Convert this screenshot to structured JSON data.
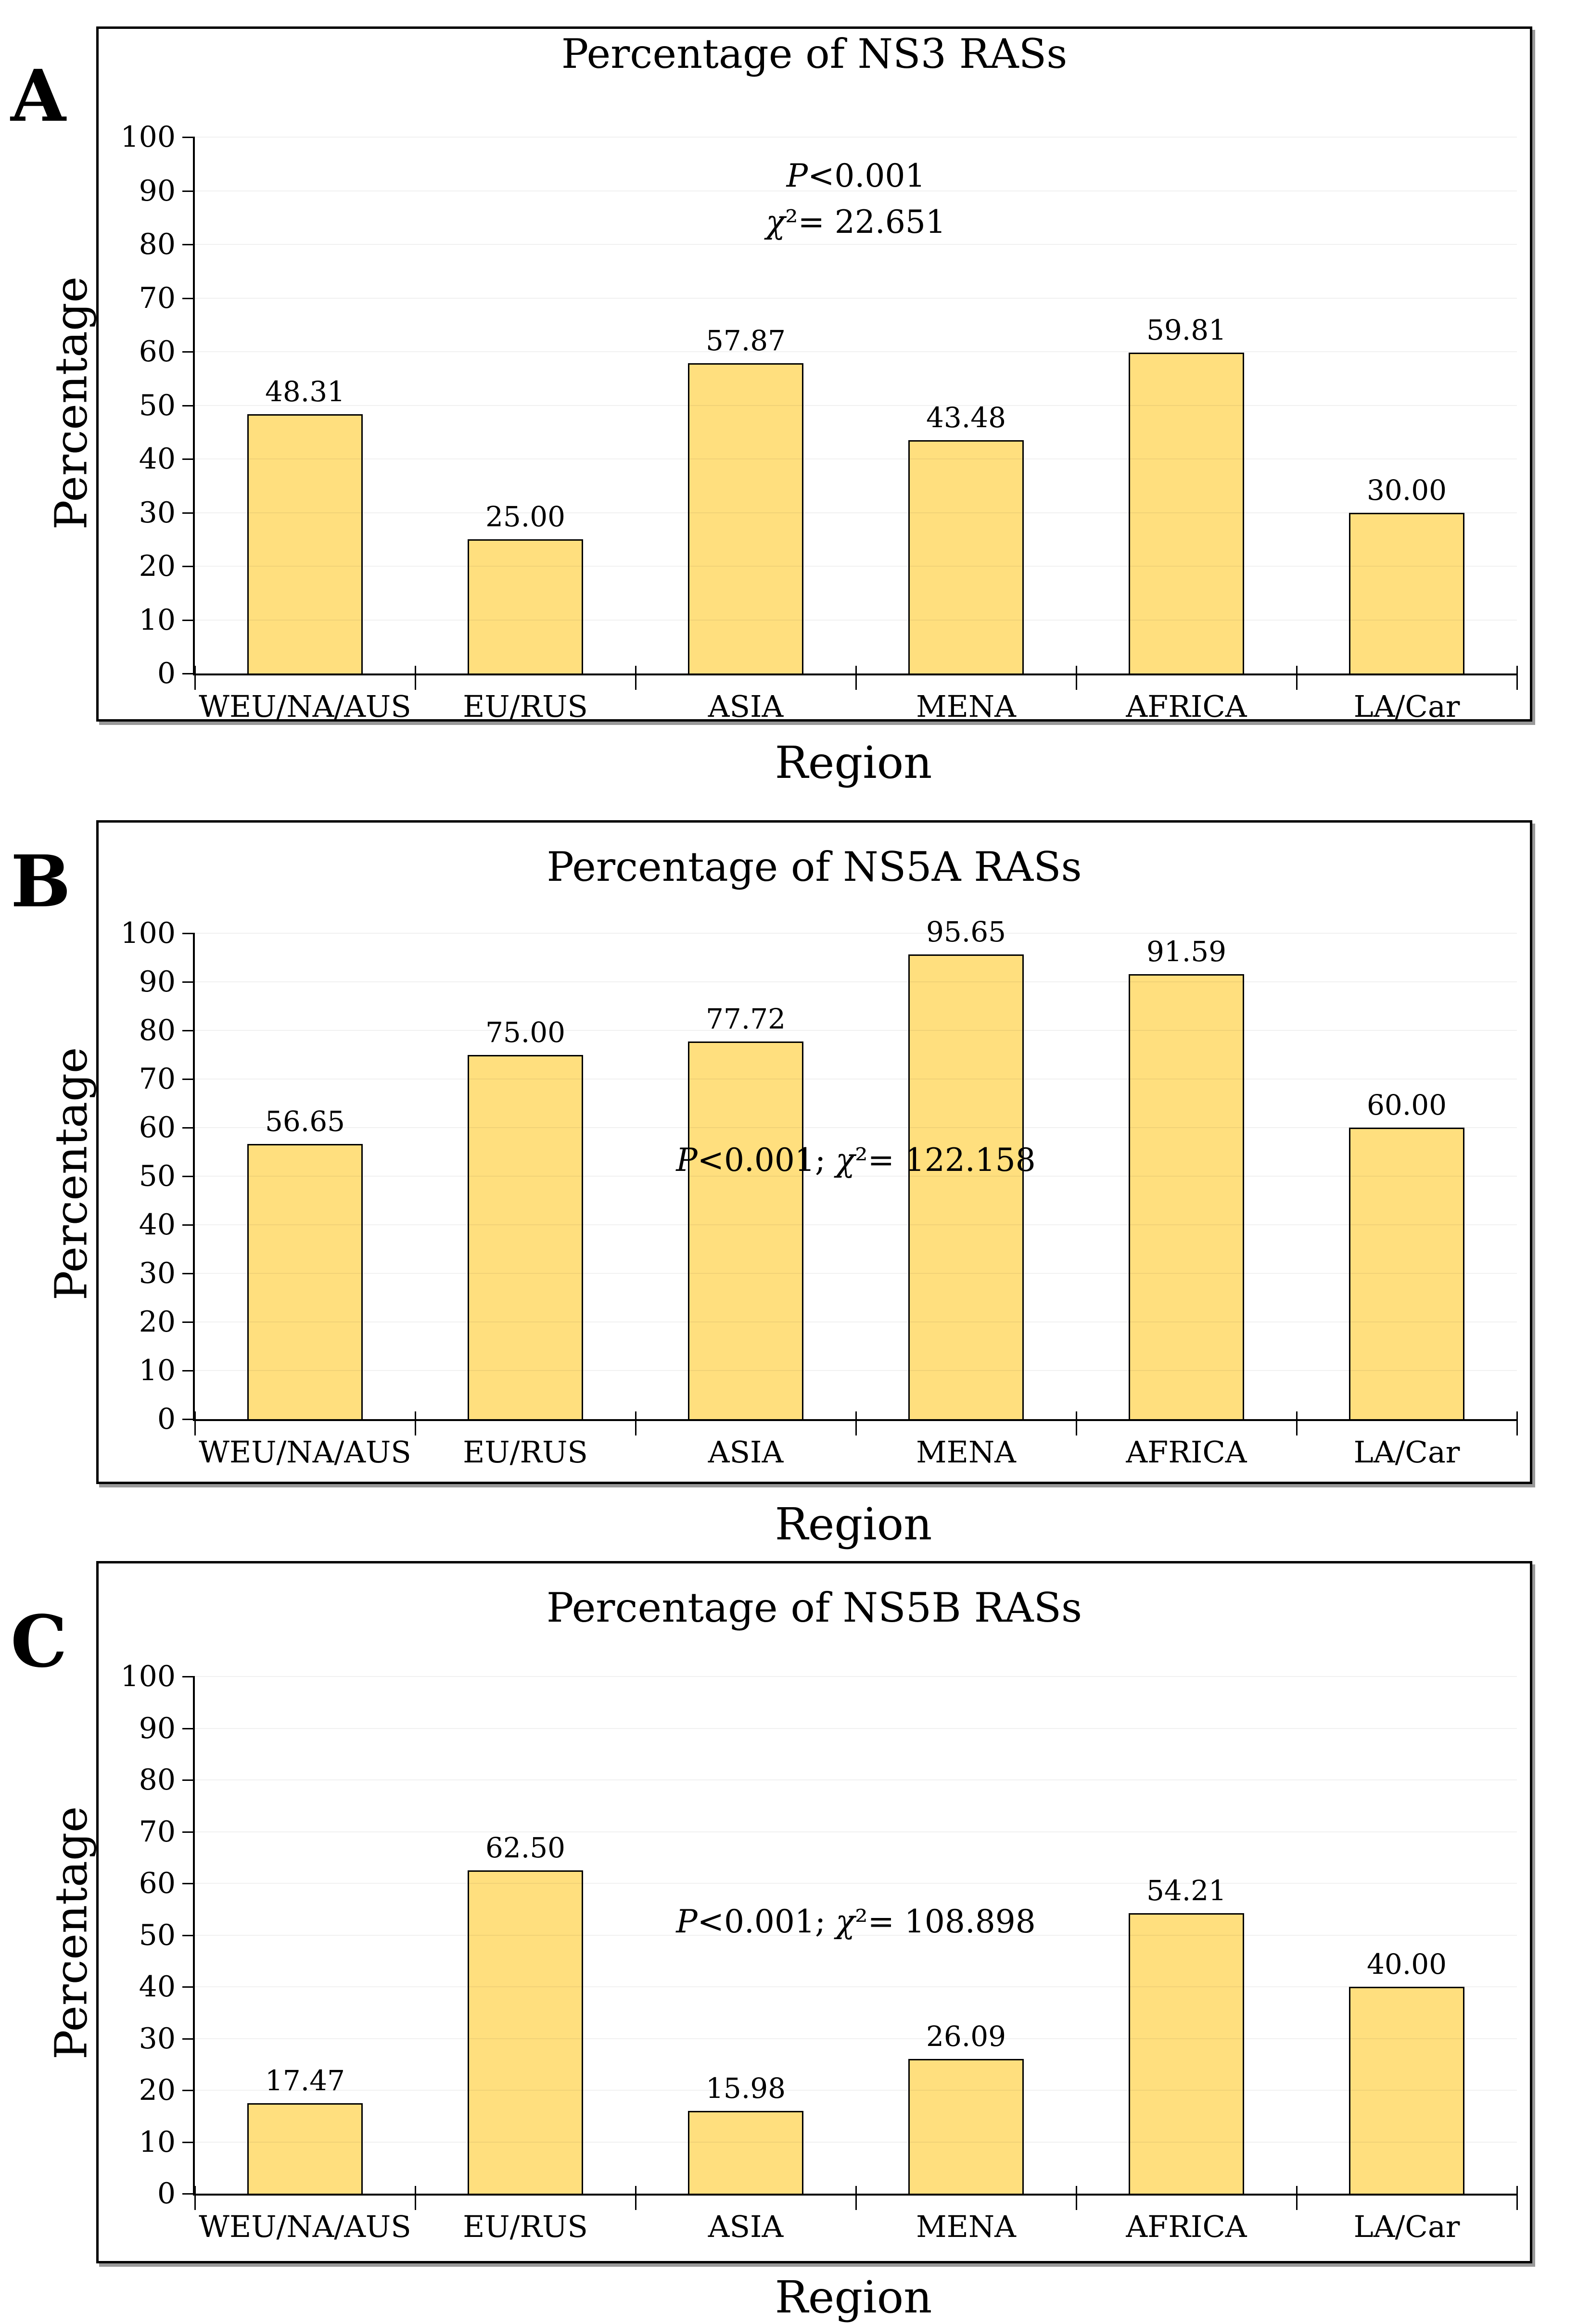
{
  "figure": {
    "panel_letters": [
      "A",
      "B",
      "C"
    ]
  },
  "chart_data": [
    {
      "type": "bar",
      "panel_label": "A",
      "title": "Percentage of NS3 RASs",
      "xlabel": "Region",
      "ylabel": "Percentage",
      "categories": [
        "WEU/NA/AUS",
        "EU/RUS",
        "ASIA",
        "MENA",
        "AFRICA",
        "LA/Car"
      ],
      "values": [
        48.31,
        25.0,
        57.87,
        43.48,
        59.81,
        30.0
      ],
      "value_labels": [
        "48.31",
        "25.00",
        "57.87",
        "43.48",
        "59.81",
        "30.00"
      ],
      "annotation": {
        "lines": [
          "P<0.001",
          "χ²= 22.651"
        ],
        "y_value": 97,
        "x_frac": 0.5
      },
      "ylim": [
        0,
        100
      ],
      "ytick_step": 10,
      "grid": true,
      "legend": "none",
      "bar_color": "#FFDF7E",
      "bar_border_color": "#000000"
    },
    {
      "type": "bar",
      "panel_label": "B",
      "title": "Percentage of NS5A RASs",
      "xlabel": "Region",
      "ylabel": "Percentage",
      "categories": [
        "WEU/NA/AUS",
        "EU/RUS",
        "ASIA",
        "MENA",
        "AFRICA",
        "LA/Car"
      ],
      "values": [
        56.65,
        75.0,
        77.72,
        95.65,
        91.59,
        60.0
      ],
      "value_labels": [
        "56.65",
        "75.00",
        "77.72",
        "95.65",
        "91.59",
        "60.00"
      ],
      "annotation": {
        "lines": [
          "P<0.001; χ²= 122.158"
        ],
        "y_value": 58,
        "x_frac": 0.5
      },
      "ylim": [
        0,
        100
      ],
      "ytick_step": 10,
      "grid": true,
      "legend": "none",
      "bar_color": "#FFDF7E",
      "bar_border_color": "#000000"
    },
    {
      "type": "bar",
      "panel_label": "C",
      "title": "Percentage of NS5B RASs",
      "xlabel": "Region",
      "ylabel": "Percentage",
      "categories": [
        "WEU/NA/AUS",
        "EU/RUS",
        "ASIA",
        "MENA",
        "AFRICA",
        "LA/Car"
      ],
      "values": [
        17.47,
        62.5,
        15.98,
        26.09,
        54.21,
        40.0
      ],
      "value_labels": [
        "17.47",
        "62.50",
        "15.98",
        "26.09",
        "54.21",
        "40.00"
      ],
      "annotation": {
        "lines": [
          "P<0.001; χ²= 108.898"
        ],
        "y_value": 57,
        "x_frac": 0.5
      },
      "ylim": [
        0,
        100
      ],
      "ytick_step": 10,
      "grid": true,
      "legend": "none",
      "bar_color": "#FFDF7E",
      "bar_border_color": "#000000"
    }
  ]
}
